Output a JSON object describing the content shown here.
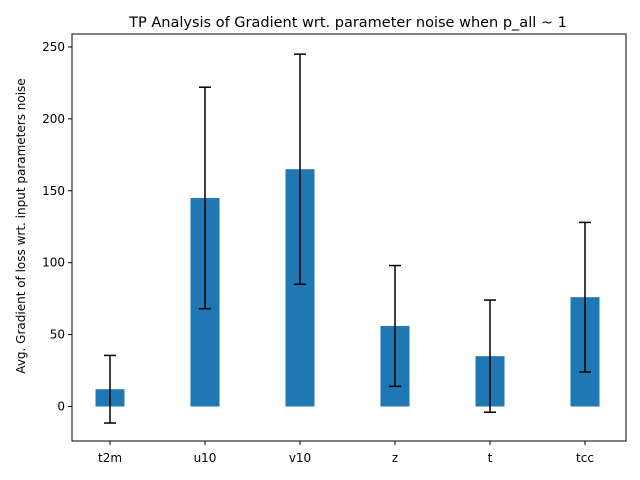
{
  "chart_data": {
    "type": "bar",
    "title": "TP Analysis of Gradient wrt. parameter noise when p_all ~ 1",
    "xlabel": "",
    "ylabel": "Avg. Gradient of loss wrt. input parameters noise",
    "categories": [
      "t2m",
      "u10",
      "v10",
      "z",
      "t",
      "tcc"
    ],
    "series": [
      {
        "values": [
          12,
          145,
          165,
          56,
          35,
          76
        ],
        "error": [
          23.5,
          77,
          80,
          42,
          39,
          52
        ]
      }
    ],
    "ylim": [
      -24,
      259
    ],
    "yticks": [
      0,
      50,
      100,
      150,
      200,
      250
    ],
    "grid": false,
    "legend": "none",
    "colors": {
      "bar": "#1f77b4",
      "error": "#000000"
    }
  }
}
